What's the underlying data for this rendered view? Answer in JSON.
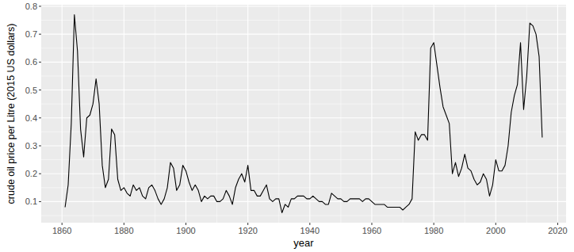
{
  "chart_data": {
    "type": "line",
    "x_label": "year",
    "y_label": "crude oil price per Litre (2015 US dollars)",
    "x": [
      1861,
      1862,
      1863,
      1864,
      1865,
      1866,
      1867,
      1868,
      1869,
      1870,
      1871,
      1872,
      1873,
      1874,
      1875,
      1876,
      1877,
      1878,
      1879,
      1880,
      1881,
      1882,
      1883,
      1884,
      1885,
      1886,
      1887,
      1888,
      1889,
      1890,
      1891,
      1892,
      1893,
      1894,
      1895,
      1896,
      1897,
      1898,
      1899,
      1900,
      1901,
      1902,
      1903,
      1904,
      1905,
      1906,
      1907,
      1908,
      1909,
      1910,
      1911,
      1912,
      1913,
      1914,
      1915,
      1916,
      1917,
      1918,
      1919,
      1920,
      1921,
      1922,
      1923,
      1924,
      1925,
      1926,
      1927,
      1928,
      1929,
      1930,
      1931,
      1932,
      1933,
      1934,
      1935,
      1936,
      1937,
      1938,
      1939,
      1940,
      1941,
      1942,
      1943,
      1944,
      1945,
      1946,
      1947,
      1948,
      1949,
      1950,
      1951,
      1952,
      1953,
      1954,
      1955,
      1956,
      1957,
      1958,
      1959,
      1960,
      1961,
      1962,
      1963,
      1964,
      1965,
      1966,
      1967,
      1968,
      1969,
      1970,
      1971,
      1972,
      1973,
      1974,
      1975,
      1976,
      1977,
      1978,
      1979,
      1980,
      1981,
      1982,
      1983,
      1984,
      1985,
      1986,
      1987,
      1988,
      1989,
      1990,
      1991,
      1992,
      1993,
      1994,
      1995,
      1996,
      1997,
      1998,
      1999,
      2000,
      2001,
      2002,
      2003,
      2004,
      2005,
      2006,
      2007,
      2008,
      2009,
      2010,
      2011,
      2012,
      2013,
      2014,
      2015
    ],
    "values": [
      0.08,
      0.16,
      0.38,
      0.77,
      0.64,
      0.36,
      0.26,
      0.4,
      0.41,
      0.45,
      0.54,
      0.45,
      0.23,
      0.15,
      0.18,
      0.36,
      0.34,
      0.18,
      0.14,
      0.15,
      0.13,
      0.12,
      0.16,
      0.14,
      0.15,
      0.12,
      0.11,
      0.15,
      0.16,
      0.14,
      0.11,
      0.09,
      0.11,
      0.15,
      0.24,
      0.22,
      0.14,
      0.16,
      0.23,
      0.21,
      0.17,
      0.14,
      0.16,
      0.14,
      0.1,
      0.12,
      0.11,
      0.12,
      0.12,
      0.1,
      0.1,
      0.11,
      0.14,
      0.12,
      0.09,
      0.15,
      0.18,
      0.2,
      0.17,
      0.23,
      0.14,
      0.14,
      0.12,
      0.12,
      0.14,
      0.16,
      0.11,
      0.1,
      0.11,
      0.11,
      0.06,
      0.09,
      0.08,
      0.11,
      0.11,
      0.12,
      0.12,
      0.12,
      0.11,
      0.11,
      0.12,
      0.11,
      0.1,
      0.1,
      0.09,
      0.09,
      0.13,
      0.12,
      0.11,
      0.11,
      0.1,
      0.1,
      0.11,
      0.11,
      0.11,
      0.11,
      0.1,
      0.11,
      0.11,
      0.1,
      0.09,
      0.09,
      0.09,
      0.09,
      0.08,
      0.08,
      0.08,
      0.08,
      0.08,
      0.07,
      0.08,
      0.09,
      0.11,
      0.35,
      0.32,
      0.34,
      0.34,
      0.32,
      0.65,
      0.67,
      0.59,
      0.51,
      0.44,
      0.41,
      0.38,
      0.2,
      0.24,
      0.19,
      0.22,
      0.27,
      0.22,
      0.21,
      0.18,
      0.16,
      0.17,
      0.2,
      0.18,
      0.12,
      0.16,
      0.25,
      0.21,
      0.21,
      0.23,
      0.3,
      0.42,
      0.48,
      0.52,
      0.67,
      0.43,
      0.55,
      0.74,
      0.73,
      0.7,
      0.62,
      0.33
    ],
    "color": "#000000",
    "xlim": [
      1853.3,
      2022.7
    ],
    "ylim": [
      0.0245,
      0.8055
    ],
    "xticks": [
      1860,
      1880,
      1900,
      1920,
      1940,
      1960,
      1980,
      2000,
      2020
    ],
    "yticks": [
      0.1,
      0.2,
      0.3,
      0.4,
      0.5,
      0.6,
      0.7,
      0.8
    ],
    "grid": true
  }
}
